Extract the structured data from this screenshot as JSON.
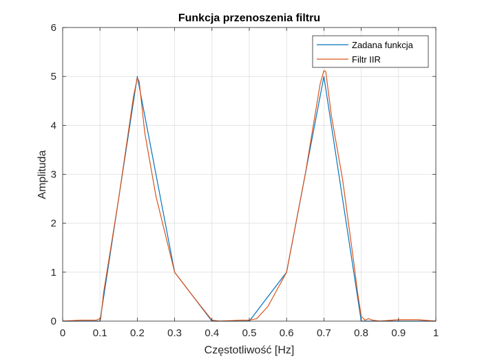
{
  "chart_data": {
    "type": "line",
    "title": "Funkcja przenoszenia filtru",
    "xlabel": "Częstotliwość [Hz]",
    "ylabel": "Amplituda",
    "xlim": [
      0,
      1
    ],
    "ylim": [
      0,
      6
    ],
    "xticks": [
      0,
      0.1,
      0.2,
      0.3,
      0.4,
      0.5,
      0.6,
      0.7,
      0.8,
      0.9,
      1
    ],
    "xtick_labels": [
      "0",
      "0.1",
      "0.2",
      "0.3",
      "0.4",
      "0.5",
      "0.6",
      "0.7",
      "0.8",
      "0.9",
      "1"
    ],
    "yticks": [
      0,
      1,
      2,
      3,
      4,
      5,
      6
    ],
    "ytick_labels": [
      "0",
      "1",
      "2",
      "3",
      "4",
      "5",
      "6"
    ],
    "grid": true,
    "legend_position": "top-right",
    "series": [
      {
        "name": "Zadana funkcja",
        "color": "#0072BD",
        "x": [
          0,
          0.09,
          0.1,
          0.2,
          0.3,
          0.4,
          0.5,
          0.6,
          0.7,
          0.8,
          0.81,
          1
        ],
        "y": [
          0,
          0,
          0,
          5,
          1,
          0,
          0,
          1,
          5,
          0,
          0,
          0
        ]
      },
      {
        "name": "Filtr IIR",
        "color": "#D95319",
        "x": [
          0,
          0.05,
          0.09,
          0.1,
          0.102,
          0.11,
          0.15,
          0.19,
          0.2,
          0.205,
          0.22,
          0.25,
          0.3,
          0.35,
          0.4,
          0.42,
          0.45,
          0.48,
          0.5,
          0.52,
          0.55,
          0.6,
          0.65,
          0.69,
          0.7,
          0.705,
          0.72,
          0.75,
          0.78,
          0.79,
          0.8,
          0.81,
          0.82,
          0.83,
          0.85,
          0.9,
          0.95,
          1
        ],
        "y": [
          0,
          0.02,
          0.02,
          0.05,
          0.05,
          0.6,
          2.5,
          4.6,
          4.97,
          4.9,
          3.85,
          2.55,
          1.0,
          0.5,
          0.02,
          0.0,
          0.01,
          0.02,
          0.02,
          0.05,
          0.3,
          1.0,
          3.0,
          4.85,
          5.12,
          5.1,
          4.2,
          2.9,
          1.2,
          0.6,
          0.1,
          0.02,
          0.05,
          0.02,
          0.0,
          0.03,
          0.03,
          0.0
        ]
      }
    ]
  }
}
